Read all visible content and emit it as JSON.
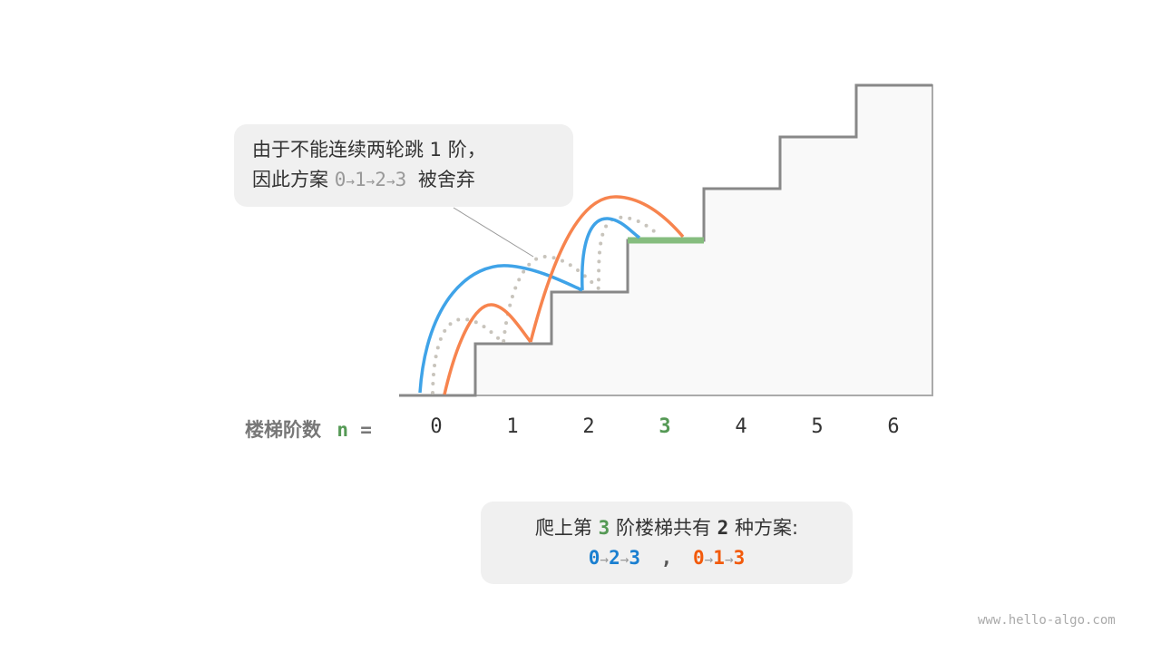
{
  "callout_discarded": {
    "line1": "由于不能连续两轮跳 1 阶，",
    "line2_prefix": "因此方案",
    "path": [
      "0",
      "1",
      "2",
      "3"
    ],
    "line2_suffix": "被舍弃"
  },
  "axis": {
    "label": "楼梯阶数",
    "var": "n",
    "eq": "=",
    "steps": [
      "0",
      "1",
      "2",
      "3",
      "4",
      "5",
      "6"
    ],
    "target_step": 3
  },
  "summary": {
    "prefix": "爬上第",
    "target": "3",
    "middle": "阶楼梯共有",
    "count": "2",
    "suffix": "种方案:",
    "path_a": [
      "0",
      "2",
      "3"
    ],
    "separator": ",",
    "path_b": [
      "0",
      "1",
      "3"
    ]
  },
  "arrow": "→",
  "watermark": "www.hello-algo.com",
  "colors": {
    "blue": "#3fa3e8",
    "orange": "#f7844e",
    "green": "#559955",
    "target_green": "#86bd7f",
    "dotted": "#c8c4bc",
    "path_a": "#1a7fd0",
    "path_b": "#f25a0b"
  }
}
